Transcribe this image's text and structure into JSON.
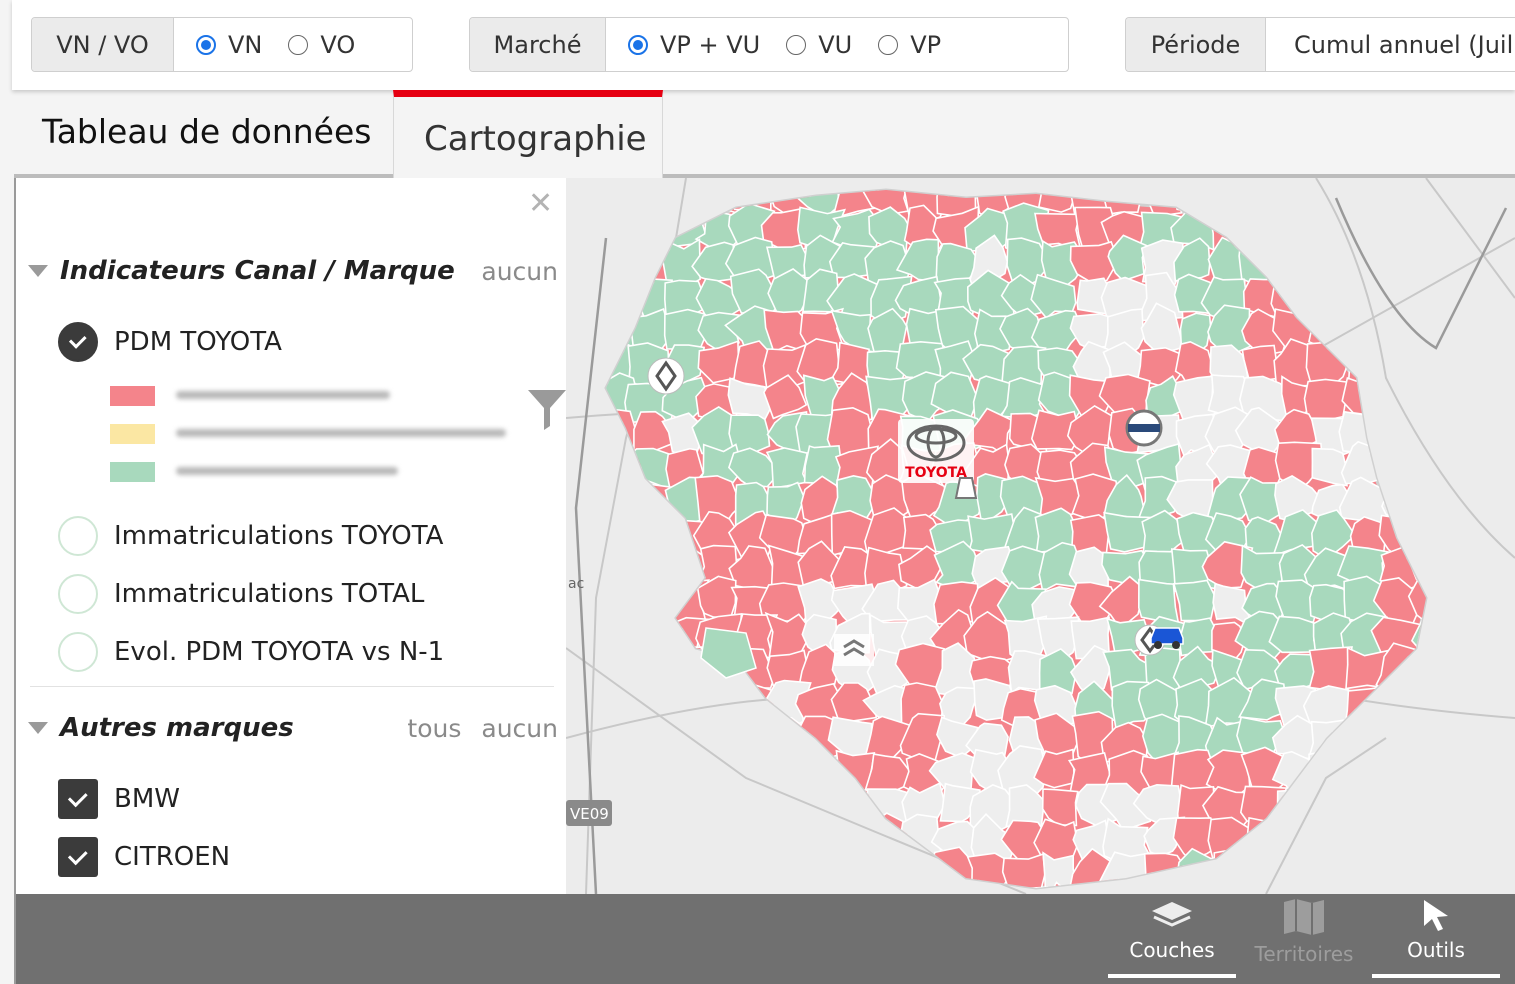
{
  "filters": {
    "vnvo": {
      "label": "VN / VO",
      "options": [
        {
          "label": "VN",
          "selected": true
        },
        {
          "label": "VO",
          "selected": false
        }
      ]
    },
    "marche": {
      "label": "Marché",
      "options": [
        {
          "label": "VP + VU",
          "selected": true
        },
        {
          "label": "VU",
          "selected": false
        },
        {
          "label": "VP",
          "selected": false
        }
      ]
    },
    "periode": {
      "label": "Période",
      "value": "Cumul annuel (Juil"
    }
  },
  "tabs": {
    "data": "Tableau de données",
    "carto": "Cartographie",
    "active": "carto"
  },
  "panel": {
    "close_icon": "close-icon",
    "section1": {
      "title": "Indicateurs Canal / Marque",
      "link_none": "aucun",
      "options": [
        {
          "label": "PDM TOYOTA",
          "checked": true
        },
        {
          "label": "Immatriculations TOYOTA",
          "checked": false
        },
        {
          "label": "Immatriculations TOTAL",
          "checked": false
        },
        {
          "label": "Evol. PDM TOYOTA vs N-1",
          "checked": false
        }
      ],
      "legend_colors": [
        "#f4848b",
        "#fbe7a3",
        "#a8d9bd"
      ]
    },
    "section2": {
      "title": "Autres marques",
      "link_all": "tous",
      "link_none": "aucun",
      "brands": [
        {
          "label": "BMW",
          "checked": true
        },
        {
          "label": "CITROEN",
          "checked": true
        }
      ]
    }
  },
  "map": {
    "road_label_left": "ac",
    "road_label_bottom": "VE09",
    "toyota_label": "TOYOTA",
    "colors": {
      "red": "#f4848b",
      "green": "#a8d9bd",
      "grey": "#eeeeee",
      "background": "#ececec"
    }
  },
  "toolbar": {
    "couches": "Couches",
    "territoires": "Territoires",
    "outils": "Outils"
  },
  "colors": {
    "accent_red": "#e60012",
    "radio_blue": "#1a73e8",
    "checkbox_dark": "#3b3b3b"
  }
}
